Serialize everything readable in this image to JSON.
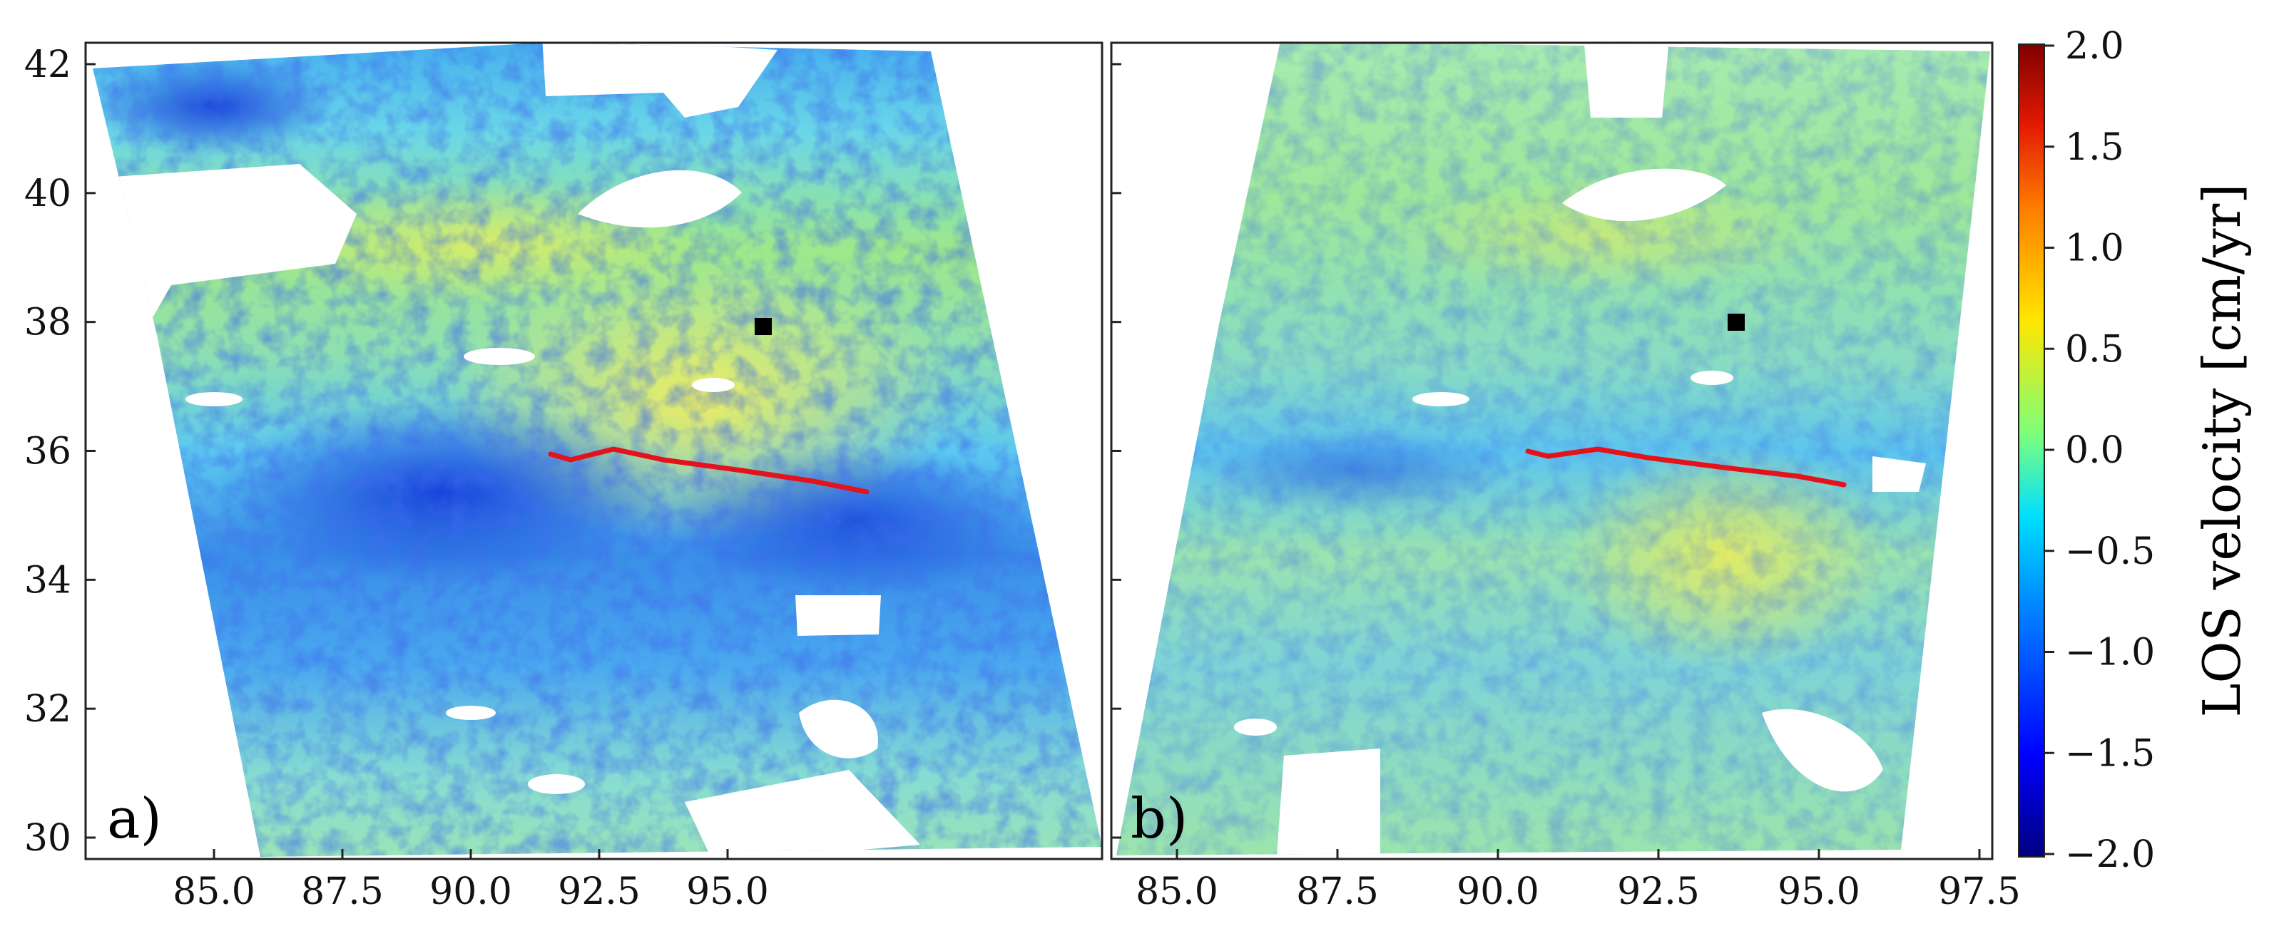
{
  "colors": {
    "fault_trace": "#e3121b",
    "site_marker": "#000000",
    "nodata": "#ffffff",
    "colormap": [
      "#00007f",
      "#0000ff",
      "#0080ff",
      "#00e0ff",
      "#7dff7a",
      "#ffe600",
      "#ff7b00",
      "#e31a00",
      "#7f0000"
    ]
  },
  "axes": {
    "y_ticks": [
      "42",
      "40",
      "38",
      "36",
      "34",
      "32",
      "30"
    ],
    "x_ticks": [
      "85.0",
      "87.5",
      "90.0",
      "92.5",
      "95.0",
      "97.5"
    ]
  },
  "panels": [
    {
      "label": "a)"
    },
    {
      "label": "b)"
    }
  ],
  "colorbar": {
    "title": "LOS velocity [cm/yr]",
    "ticks": [
      "2.0",
      "1.5",
      "1.0",
      "0.5",
      "0.0",
      "−0.5",
      "−1.0",
      "−1.5",
      "−2.0"
    ]
  }
}
